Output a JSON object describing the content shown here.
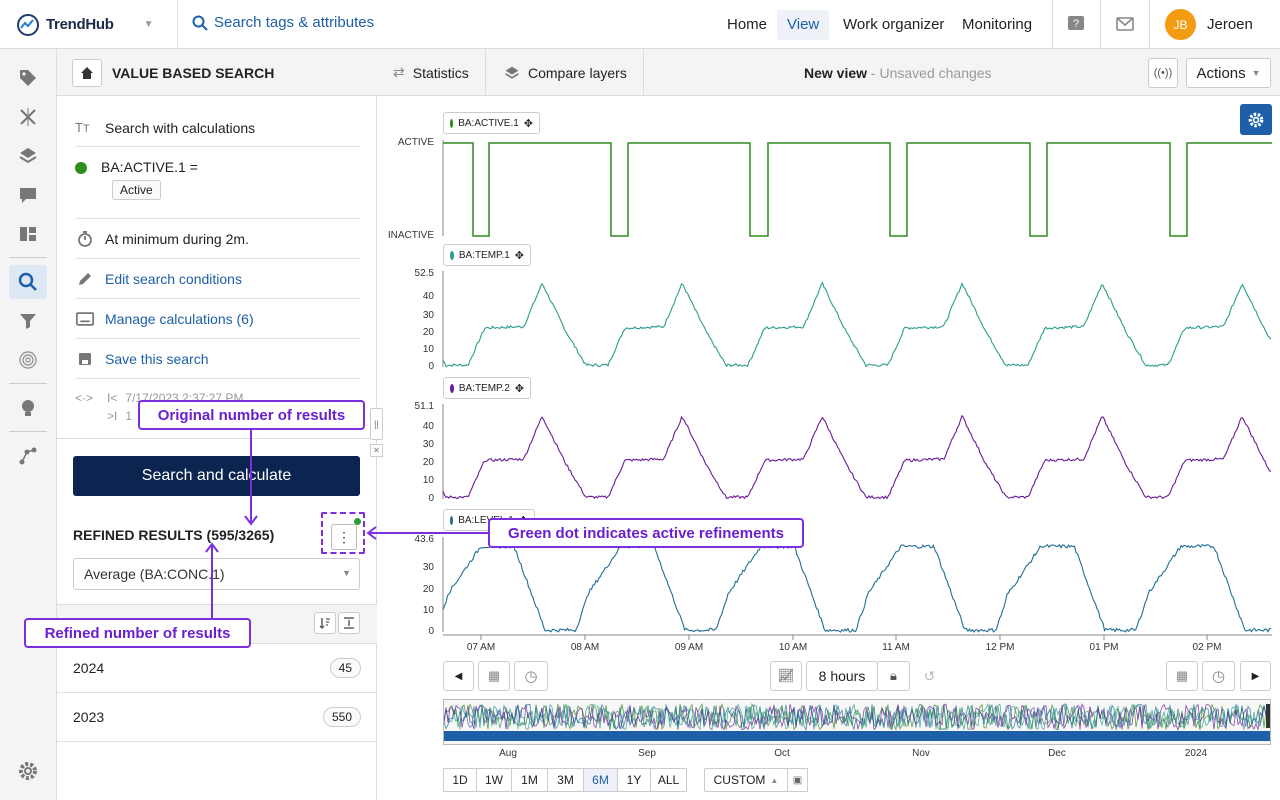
{
  "header": {
    "brand": "TrendHub",
    "search_placeholder": "Search tags & attributes",
    "nav": [
      "Home",
      "View",
      "Work organizer",
      "Monitoring"
    ],
    "active_nav": "View",
    "user_initials": "JB",
    "user_name": "Jeroen"
  },
  "panel": {
    "title": "VALUE BASED SEARCH",
    "search_type": "Search with calculations",
    "condition_tag": "BA:ACTIVE.1 =",
    "condition_value": "Active",
    "duration": "At minimum during 2m.",
    "edit_link": "Edit search conditions",
    "manage_link": "Manage calculations (6)",
    "save_link": "Save this search",
    "range_start": "7/17/2023 2:37:27 PM",
    "range_end": "1",
    "search_button": "Search and calculate",
    "results_label": "REFINED RESULTS (595/3265)",
    "aggregate": "Average (BA:CONC.1)",
    "groups": [
      {
        "label": "2024",
        "count": "45"
      },
      {
        "label": "2023",
        "count": "550"
      }
    ]
  },
  "toolbar": {
    "statistics": "Statistics",
    "compare": "Compare layers",
    "view_name": "New view",
    "view_status": "- Unsaved changes",
    "actions": "Actions"
  },
  "chart_data": {
    "type": "line",
    "x_ticks": [
      "07 AM",
      "08 AM",
      "09 AM",
      "10 AM",
      "11 AM",
      "12 PM",
      "01 PM",
      "02 PM"
    ],
    "series": [
      {
        "name": "BA:ACTIVE.1",
        "color": "#2e8b1e",
        "y_ticks": [
          "ACTIVE",
          "INACTIVE"
        ]
      },
      {
        "name": "BA:TEMP.1",
        "color": "#2a9d8f",
        "y_ticks": [
          "52.5",
          "40",
          "30",
          "20",
          "10",
          "0"
        ]
      },
      {
        "name": "BA:TEMP.2",
        "color": "#6a1b9a",
        "y_ticks": [
          "51.1",
          "40",
          "30",
          "20",
          "10",
          "0"
        ]
      },
      {
        "name": "BA:LEVEL.1",
        "color": "#1f6f95",
        "y_ticks": [
          "43.6",
          "30",
          "20",
          "10",
          "0"
        ]
      }
    ]
  },
  "timebar": {
    "duration": "8 hours",
    "overview_ticks": [
      "Aug",
      "Sep",
      "Oct",
      "Nov",
      "Dec",
      "2024"
    ],
    "ranges": [
      "1D",
      "1W",
      "1M",
      "3M",
      "6M",
      "1Y",
      "ALL"
    ],
    "selected_range": "6M",
    "custom": "CUSTOM"
  },
  "annotations": {
    "original": "Original number of results",
    "refined": "Refined number of results",
    "green_dot": "Green dot indicates active refinements"
  }
}
